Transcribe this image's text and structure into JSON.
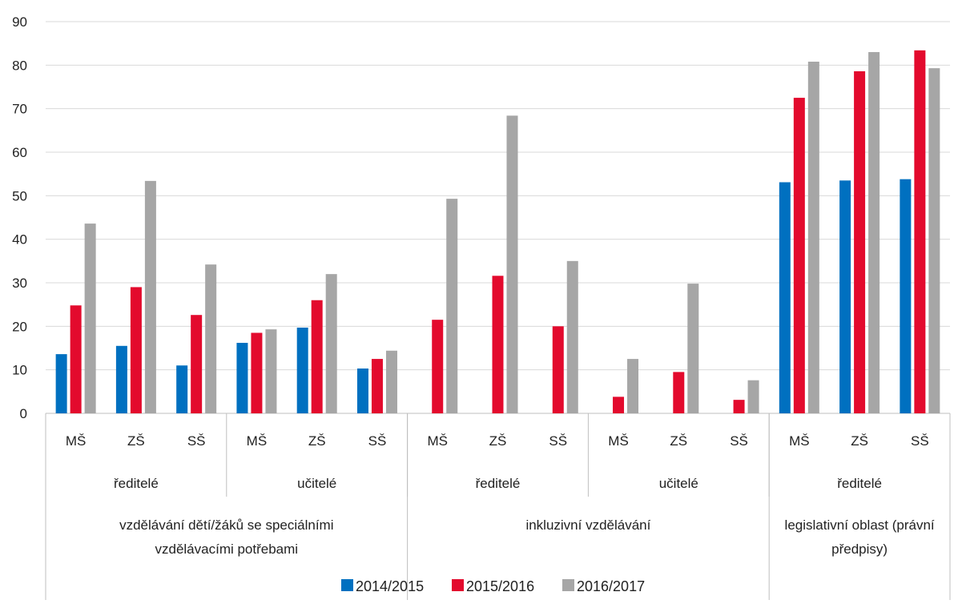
{
  "chart_data": {
    "type": "bar",
    "ylim": [
      0,
      90
    ],
    "yticks": [
      0,
      10,
      20,
      30,
      40,
      50,
      60,
      70,
      80,
      90
    ],
    "grid": true,
    "legend_position": "bottom",
    "categories": [
      "MŠ",
      "ZŠ",
      "SŠ",
      "MŠ",
      "ZŠ",
      "SŠ",
      "MŠ",
      "ZŠ",
      "SŠ",
      "MŠ",
      "ZŠ",
      "SŠ",
      "MŠ",
      "ZŠ",
      "SŠ"
    ],
    "group_level_1": [
      {
        "label": "ředitelé",
        "span": 3
      },
      {
        "label": "učitelé",
        "span": 3
      },
      {
        "label": "ředitelé",
        "span": 3
      },
      {
        "label": "učitelé",
        "span": 3
      },
      {
        "label": "ředitelé",
        "span": 3
      }
    ],
    "group_level_2": [
      {
        "lines": [
          "vzdělávání dětí/žáků se speciálními",
          "vzdělávacími potřebami"
        ],
        "span": 6
      },
      {
        "lines": [
          "inkluzivní vzdělávání"
        ],
        "span": 6
      },
      {
        "lines": [
          "legislativní oblast (právní",
          "předpisy)"
        ],
        "span": 3
      }
    ],
    "series": [
      {
        "name": "2014/2015",
        "color": "#0070c0",
        "values": [
          13.6,
          15.5,
          11.0,
          16.2,
          19.7,
          10.3,
          0,
          0,
          0,
          0,
          0,
          0,
          53.1,
          53.5,
          53.8
        ]
      },
      {
        "name": "2015/2016",
        "color": "#e30a2d",
        "values": [
          24.8,
          29.0,
          22.6,
          18.5,
          26.0,
          12.5,
          21.5,
          31.6,
          20.0,
          3.8,
          9.5,
          3.1,
          72.5,
          78.6,
          83.4
        ]
      },
      {
        "name": "2016/2017",
        "color": "#a6a6a6",
        "values": [
          43.6,
          53.4,
          34.2,
          19.3,
          32.0,
          14.4,
          49.3,
          68.4,
          35.0,
          12.5,
          29.8,
          7.6,
          80.8,
          83.0,
          79.3
        ]
      }
    ]
  }
}
